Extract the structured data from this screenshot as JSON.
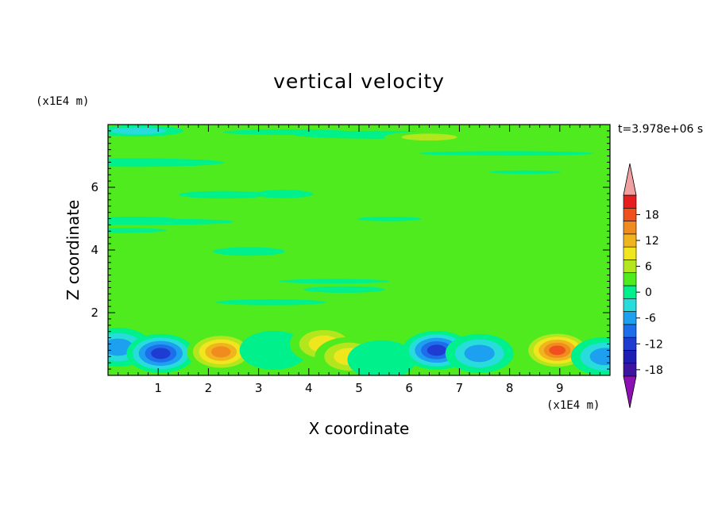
{
  "chart_data": {
    "type": "heatmap",
    "title": "vertical velocity",
    "xlabel": "X coordinate",
    "ylabel": "Z coordinate",
    "x_unit": "(x1E4 m)",
    "y_unit": "(x1E4 m)",
    "time_label": "t=3.978e+06 s",
    "xlim": [
      0,
      10
    ],
    "ylim": [
      0,
      8
    ],
    "x_ticks": [
      1,
      2,
      3,
      4,
      5,
      6,
      7,
      8,
      9
    ],
    "y_ticks": [
      2,
      4,
      6
    ],
    "colorbar": {
      "ticks": [
        18,
        12,
        6,
        0,
        -6,
        -12,
        -18
      ],
      "levels": [
        -21,
        -18,
        -15,
        -12,
        -9,
        -6,
        -3,
        0,
        3,
        6,
        9,
        12,
        15,
        18,
        21
      ],
      "colors": [
        "#8c10b4",
        "#3c14a0",
        "#1e1eb4",
        "#1e3cd2",
        "#1e6eeb",
        "#1ea0f0",
        "#28dcdc",
        "#00f08c",
        "#50eb1e",
        "#b4e61e",
        "#f0e61e",
        "#f0b41e",
        "#f08c1e",
        "#f0501e",
        "#e61e1e",
        "#f0a0a0"
      ]
    },
    "background_value": 1,
    "features": [
      {
        "x": 0.2,
        "z": 0.9,
        "value": -10
      },
      {
        "x": 1.05,
        "z": 0.7,
        "value": -14
      },
      {
        "x": 2.25,
        "z": 0.75,
        "value": 16
      },
      {
        "x": 3.3,
        "z": 0.8,
        "value": -4
      },
      {
        "x": 4.3,
        "z": 1.0,
        "value": 10
      },
      {
        "x": 4.8,
        "z": 0.6,
        "value": 8
      },
      {
        "x": 5.45,
        "z": 0.5,
        "value": -3
      },
      {
        "x": 6.55,
        "z": 0.8,
        "value": -16
      },
      {
        "x": 7.4,
        "z": 0.7,
        "value": -10
      },
      {
        "x": 8.95,
        "z": 0.8,
        "value": 17
      },
      {
        "x": 9.9,
        "z": 0.6,
        "value": -8
      },
      {
        "x": 6.4,
        "z": 7.6,
        "value": 6
      },
      {
        "x": 0.6,
        "z": 7.8,
        "value": -6
      }
    ]
  }
}
